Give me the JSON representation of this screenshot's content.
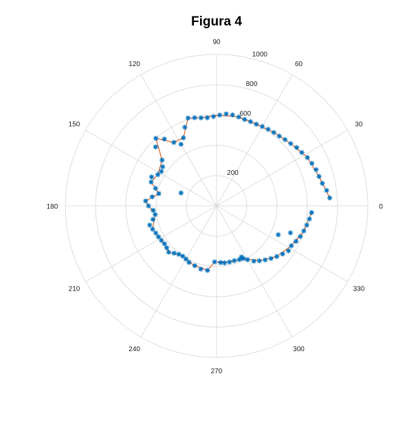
{
  "chart_data": {
    "type": "scatter",
    "polar": true,
    "title": "Figura 4",
    "rlim": [
      0,
      1000
    ],
    "r_ticks": [
      200,
      600,
      800,
      1000
    ],
    "r_gridlines": [
      200,
      400,
      600,
      800,
      1000
    ],
    "theta_ticks": [
      0,
      30,
      60,
      90,
      120,
      150,
      180,
      210,
      240,
      270,
      300,
      330
    ],
    "theta_labels": [
      "0",
      "30",
      "60",
      "90",
      "120",
      "150",
      "180",
      "210",
      "240",
      "270",
      "300",
      "330"
    ],
    "theta_unit": "degrees",
    "grid": true,
    "colors": {
      "markers": "#0072BD",
      "line": "#D95319",
      "grid": "#dcdcdc"
    },
    "series": [
      {
        "marker": "*",
        "style": "markers",
        "points": [
          [
            4,
            750
          ],
          [
            8,
            735
          ],
          [
            12,
            715
          ],
          [
            16,
            705
          ],
          [
            20,
            700
          ],
          [
            24,
            690
          ],
          [
            28,
            680
          ],
          [
            32,
            665
          ],
          [
            36,
            655
          ],
          [
            40,
            640
          ],
          [
            44,
            630
          ],
          [
            48,
            620
          ],
          [
            52,
            615
          ],
          [
            56,
            610
          ],
          [
            60,
            605
          ],
          [
            64,
            600
          ],
          [
            68,
            600
          ],
          [
            72,
            600
          ],
          [
            76,
            605
          ],
          [
            80,
            610
          ],
          [
            84,
            610
          ],
          [
            88,
            600
          ],
          [
            92,
            590
          ],
          [
            96,
            585
          ],
          [
            100,
            590
          ],
          [
            104,
            600
          ],
          [
            108,
            610
          ],
          [
            112,
            560
          ],
          [
            116,
            500
          ],
          [
            120,
            470
          ],
          [
            124,
            505
          ],
          [
            128,
            560
          ],
          [
            132,
            600
          ],
          [
            136,
            560
          ],
          [
            140,
            470
          ],
          [
            144,
            440
          ],
          [
            148,
            430
          ],
          [
            152,
            440
          ],
          [
            156,
            470
          ],
          [
            160,
            460
          ],
          [
            164,
            420
          ],
          [
            168,
            390
          ],
          [
            172,
            430
          ],
          [
            176,
            470
          ],
          [
            180,
            450
          ],
          [
            184,
            420
          ],
          [
            188,
            410
          ],
          [
            192,
            430
          ],
          [
            196,
            460
          ],
          [
            200,
            450
          ],
          [
            204,
            440
          ],
          [
            208,
            435
          ],
          [
            212,
            430
          ],
          [
            216,
            425
          ],
          [
            220,
            430
          ],
          [
            224,
            440
          ],
          [
            228,
            420
          ],
          [
            232,
            405
          ],
          [
            236,
            400
          ],
          [
            240,
            405
          ],
          [
            244,
            415
          ],
          [
            250,
            420
          ],
          [
            256,
            430
          ],
          [
            262,
            430
          ],
          [
            268,
            370
          ],
          [
            274,
            375
          ],
          [
            278,
            380
          ],
          [
            283,
            380
          ],
          [
            288,
            380
          ],
          [
            293,
            385
          ],
          [
            297,
            390
          ],
          [
            300,
            410
          ],
          [
            304,
            440
          ],
          [
            308,
            460
          ],
          [
            312,
            480
          ],
          [
            316,
            500
          ],
          [
            320,
            520
          ],
          [
            324,
            540
          ],
          [
            328,
            560
          ],
          [
            332,
            560
          ],
          [
            336,
            575
          ],
          [
            340,
            590
          ],
          [
            344,
            600
          ],
          [
            348,
            610
          ],
          [
            352,
            620
          ],
          [
            356,
            630
          ],
          [
            160,
            250
          ],
          [
            296,
            375
          ],
          [
            335,
            450
          ],
          [
            340,
            520
          ]
        ]
      },
      {
        "style": "line",
        "points": [
          [
            4,
            750
          ],
          [
            16,
            705
          ],
          [
            28,
            680
          ],
          [
            40,
            640
          ],
          [
            52,
            615
          ],
          [
            64,
            600
          ],
          [
            76,
            605
          ],
          [
            88,
            600
          ],
          [
            100,
            590
          ],
          [
            108,
            610
          ],
          [
            116,
            500
          ],
          [
            124,
            505
          ],
          [
            132,
            600
          ],
          [
            140,
            470
          ],
          [
            152,
            440
          ],
          [
            160,
            460
          ],
          [
            168,
            390
          ],
          [
            176,
            470
          ],
          [
            180,
            450
          ],
          [
            188,
            410
          ],
          [
            200,
            450
          ],
          [
            212,
            430
          ],
          [
            224,
            440
          ],
          [
            236,
            400
          ],
          [
            248,
            418
          ],
          [
            262,
            430
          ],
          [
            268,
            370
          ],
          [
            283,
            380
          ],
          [
            297,
            390
          ],
          [
            308,
            460
          ],
          [
            320,
            520
          ],
          [
            332,
            560
          ],
          [
            344,
            600
          ],
          [
            356,
            630
          ]
        ]
      }
    ]
  }
}
